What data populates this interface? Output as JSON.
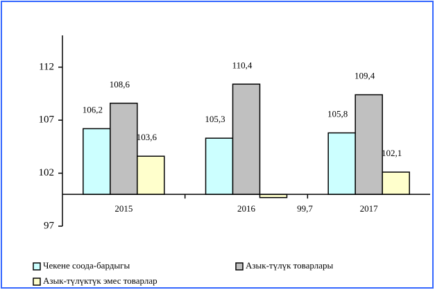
{
  "chart_data": {
    "type": "bar",
    "categories": [
      "2015",
      "2016",
      "2017"
    ],
    "series": [
      {
        "name": "Чекене соода-бардыгы",
        "color": "#ccffff",
        "values": [
          106.2,
          105.3,
          105.8
        ],
        "value_labels": [
          "106,2",
          "105,3",
          "105,8"
        ]
      },
      {
        "name": "Азык-түлүк товарлары",
        "color": "#c0c0c0",
        "values": [
          108.6,
          110.4,
          109.4
        ],
        "value_labels": [
          "108,6",
          "110,4",
          "109,4"
        ]
      },
      {
        "name": "Азык-түлүктүк эмес товарлар",
        "color": "#ffffcc",
        "values": [
          103.6,
          99.7,
          102.1
        ],
        "value_labels": [
          "103,6",
          "99,7",
          "102,1"
        ]
      }
    ],
    "ylim": [
      97,
      115
    ],
    "yticks": [
      97,
      102,
      107,
      112
    ],
    "baseline": 100,
    "grid": false,
    "legend": "bottom"
  }
}
